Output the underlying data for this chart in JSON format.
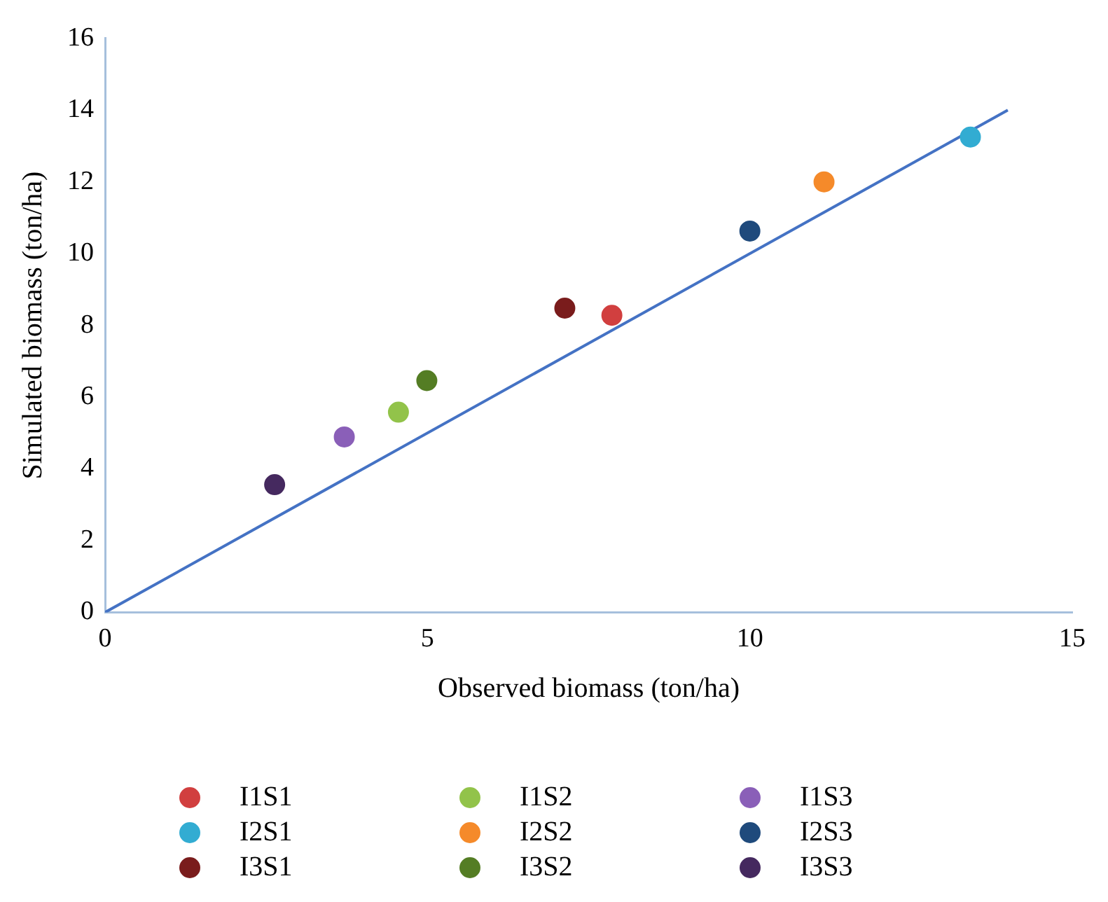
{
  "chart_data": {
    "type": "scatter",
    "xlabel": "Observed biomass (ton/ha)",
    "ylabel": "Simulated biomass (ton/ha)",
    "xlim": [
      0,
      15
    ],
    "xticks": [
      0,
      5,
      10,
      15
    ],
    "ylim": [
      0,
      16
    ],
    "yticks": [
      0,
      2,
      4,
      6,
      8,
      10,
      12,
      14,
      16
    ],
    "grid": false,
    "legend": "bottom",
    "marker": "circle",
    "series": [
      {
        "name": "I1S1",
        "color": "#d13f3f",
        "x": [
          7.86
        ],
        "values": [
          8.28
        ]
      },
      {
        "name": "I1S2",
        "color": "#92c34a",
        "x": [
          4.55
        ],
        "values": [
          5.58
        ]
      },
      {
        "name": "I1S3",
        "color": "#8a5fb8",
        "x": [
          3.71
        ],
        "values": [
          4.89
        ]
      },
      {
        "name": "I2S1",
        "color": "#32acd2",
        "x": [
          13.42
        ],
        "values": [
          13.25
        ]
      },
      {
        "name": "I2S2",
        "color": "#f58a2a",
        "x": [
          11.15
        ],
        "values": [
          12.0
        ]
      },
      {
        "name": "I2S3",
        "color": "#1f4a7c",
        "x": [
          10.0
        ],
        "values": [
          10.63
        ]
      },
      {
        "name": "I3S1",
        "color": "#7a1c1c",
        "x": [
          7.13
        ],
        "values": [
          8.48
        ]
      },
      {
        "name": "I3S2",
        "color": "#547d24",
        "x": [
          4.99
        ],
        "values": [
          6.46
        ]
      },
      {
        "name": "I3S3",
        "color": "#45295f",
        "x": [
          2.63
        ],
        "values": [
          3.56
        ]
      },
      {
        "type": "line",
        "color": "#4472c4",
        "x": [
          0,
          14
        ],
        "values": [
          0,
          14
        ],
        "marker": "none",
        "line_style": "solid"
      }
    ]
  }
}
